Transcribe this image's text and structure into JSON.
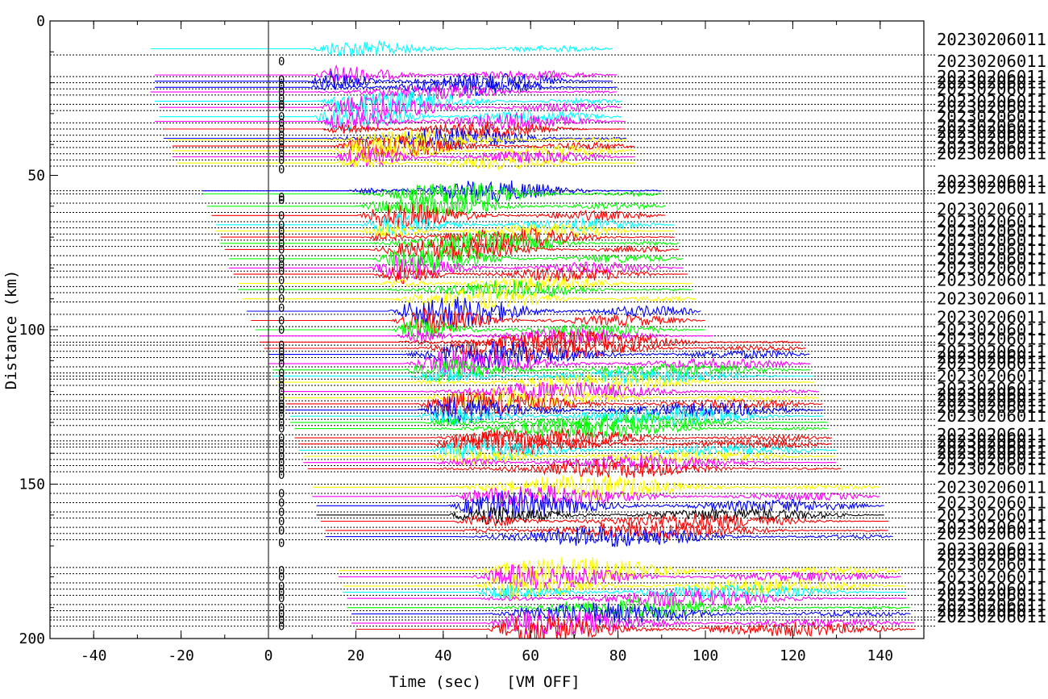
{
  "chart_data": {
    "type": "line",
    "xlabel": "Time (sec)",
    "xlabel_suffix": "[VM OFF]",
    "ylabel": "Distance (km)",
    "xlim": [
      -50,
      150
    ],
    "ylim": [
      0,
      200
    ],
    "y_inverted": true,
    "x_ticks": [
      -40,
      -20,
      0,
      20,
      40,
      60,
      80,
      100,
      120,
      140
    ],
    "y_ticks": [
      0,
      50,
      100,
      150,
      200
    ],
    "origin_line_x": 0,
    "pick_marker_x": 3,
    "pick_marker_label": "0",
    "station_label": "20230206011",
    "colors": [
      "#00ffff",
      "#0000ff",
      "#ff00ff",
      "#ff0000",
      "#ffff00",
      "#00ff00",
      "#000000"
    ],
    "traces": [
      {
        "distance": 9,
        "start": -27,
        "end": 79,
        "color": "#00ffff",
        "amp": 0.35,
        "onset": 9
      },
      {
        "distance": 17.5,
        "start": -26,
        "end": 80,
        "color": "#ff00ff",
        "amp": 0.4,
        "onset": 10
      },
      {
        "distance": 19.5,
        "start": -26,
        "end": 79,
        "color": "#0000ff",
        "amp": 0.6,
        "onset": 9
      },
      {
        "distance": 21.5,
        "start": -26,
        "end": 80,
        "color": "#0000ff",
        "amp": 0.5,
        "onset": 9
      },
      {
        "distance": 23,
        "start": -27,
        "end": 80,
        "color": "#ff00ff",
        "amp": 0.4,
        "onset": 10
      },
      {
        "distance": 26,
        "start": -26,
        "end": 81,
        "color": "#00ffff",
        "amp": 0.5,
        "onset": 9
      },
      {
        "distance": 28,
        "start": -25,
        "end": 81,
        "color": "#ff00ff",
        "amp": 0.5,
        "onset": 11
      },
      {
        "distance": 31,
        "start": -25,
        "end": 81,
        "color": "#00ffff",
        "amp": 0.6,
        "onset": 10
      },
      {
        "distance": 32.5,
        "start": -26,
        "end": 82,
        "color": "#ff00ff",
        "amp": 0.6,
        "onset": 12
      },
      {
        "distance": 35,
        "start": -24,
        "end": 82,
        "color": "#ff0000",
        "amp": 0.5,
        "onset": 12
      },
      {
        "distance": 38,
        "start": -24,
        "end": 82,
        "color": "#0000ff",
        "amp": 0.6,
        "onset": 13
      },
      {
        "distance": 38.5,
        "start": -23,
        "end": 82,
        "color": "#ffff00",
        "amp": 0.5,
        "onset": 13
      },
      {
        "distance": 40.5,
        "start": -22,
        "end": 84,
        "color": "#ff0000",
        "amp": 0.5,
        "onset": 14
      },
      {
        "distance": 42,
        "start": -22,
        "end": 84,
        "color": "#ffff00",
        "amp": 0.5,
        "onset": 14
      },
      {
        "distance": 44,
        "start": -22,
        "end": 84,
        "color": "#ff00ff",
        "amp": 0.5,
        "onset": 15
      },
      {
        "distance": 46,
        "start": -21,
        "end": 84,
        "color": "#ffff00",
        "amp": 0.4,
        "onset": 15
      },
      {
        "distance": 55,
        "start": -15,
        "end": 90,
        "color": "#0000ff",
        "amp": 0.6,
        "onset": 18
      },
      {
        "distance": 56,
        "start": -15,
        "end": 90,
        "color": "#00ff00",
        "amp": 0.6,
        "onset": 18
      },
      {
        "distance": 60,
        "start": -14,
        "end": 91,
        "color": "#00ff00",
        "amp": 0.5,
        "onset": 19
      },
      {
        "distance": 63,
        "start": -13,
        "end": 91,
        "color": "#ff0000",
        "amp": 0.5,
        "onset": 20
      },
      {
        "distance": 66,
        "start": -12,
        "end": 93,
        "color": "#00ffff",
        "amp": 0.5,
        "onset": 21
      },
      {
        "distance": 68,
        "start": -12,
        "end": 93,
        "color": "#ffff00",
        "amp": 0.5,
        "onset": 21
      },
      {
        "distance": 70,
        "start": -11,
        "end": 93,
        "color": "#ff0000",
        "amp": 0.6,
        "onset": 21
      },
      {
        "distance": 72,
        "start": -11,
        "end": 94,
        "color": "#00ff00",
        "amp": 0.6,
        "onset": 22
      },
      {
        "distance": 74,
        "start": -10,
        "end": 94,
        "color": "#ff0000",
        "amp": 0.5,
        "onset": 22
      },
      {
        "distance": 77,
        "start": -9,
        "end": 95,
        "color": "#00ff00",
        "amp": 0.5,
        "onset": 23
      },
      {
        "distance": 80,
        "start": -9,
        "end": 95,
        "color": "#ff00ff",
        "amp": 0.5,
        "onset": 23
      },
      {
        "distance": 82,
        "start": -8,
        "end": 96,
        "color": "#ff0000",
        "amp": 0.5,
        "onset": 24
      },
      {
        "distance": 85,
        "start": -7,
        "end": 97,
        "color": "#ffff00",
        "amp": 0.5,
        "onset": 25
      },
      {
        "distance": 87,
        "start": -7,
        "end": 97,
        "color": "#00ff00",
        "amp": 0.5,
        "onset": 25
      },
      {
        "distance": 90,
        "start": -6,
        "end": 98,
        "color": "#ffff00",
        "amp": 0.5,
        "onset": 26
      },
      {
        "distance": 94,
        "start": -5,
        "end": 99,
        "color": "#0000ff",
        "amp": 0.7,
        "onset": 27
      },
      {
        "distance": 97,
        "start": -4,
        "end": 100,
        "color": "#ff0000",
        "amp": 0.5,
        "onset": 28
      },
      {
        "distance": 100,
        "start": -3,
        "end": 100,
        "color": "#00ff00",
        "amp": 0.5,
        "onset": 28
      },
      {
        "distance": 102,
        "start": -2,
        "end": 102,
        "color": "#ff00ff",
        "amp": 0.5,
        "onset": 29
      },
      {
        "distance": 104,
        "start": -2,
        "end": 122,
        "color": "#ff0000",
        "amp": 0.6,
        "onset": 29
      },
      {
        "distance": 106,
        "start": -1,
        "end": 123,
        "color": "#ff0000",
        "amp": 0.6,
        "onset": 30
      },
      {
        "distance": 108,
        "start": 0,
        "end": 124,
        "color": "#0000ff",
        "amp": 0.6,
        "onset": 30
      },
      {
        "distance": 111,
        "start": 0,
        "end": 124,
        "color": "#ff00ff",
        "amp": 0.5,
        "onset": 31
      },
      {
        "distance": 113,
        "start": 1,
        "end": 124,
        "color": "#00ff00",
        "amp": 0.5,
        "onset": 31
      },
      {
        "distance": 115,
        "start": 1,
        "end": 125,
        "color": "#00ffff",
        "amp": 0.5,
        "onset": 32
      },
      {
        "distance": 117,
        "start": 2,
        "end": 125,
        "color": "#ffff00",
        "amp": 0.5,
        "onset": 32
      },
      {
        "distance": 120,
        "start": 3,
        "end": 126,
        "color": "#ff00ff",
        "amp": 0.5,
        "onset": 33
      },
      {
        "distance": 122,
        "start": 3,
        "end": 126,
        "color": "#ffff00",
        "amp": 0.5,
        "onset": 33
      },
      {
        "distance": 124,
        "start": 4,
        "end": 127,
        "color": "#ff0000",
        "amp": 0.5,
        "onset": 33
      },
      {
        "distance": 126,
        "start": 4,
        "end": 127,
        "color": "#0000ff",
        "amp": 0.6,
        "onset": 34
      },
      {
        "distance": 128,
        "start": 5,
        "end": 127,
        "color": "#00ffff",
        "amp": 0.6,
        "onset": 34
      },
      {
        "distance": 130,
        "start": 5,
        "end": 128,
        "color": "#00ff00",
        "amp": 0.5,
        "onset": 35
      },
      {
        "distance": 132,
        "start": 6,
        "end": 128,
        "color": "#00ff00",
        "amp": 0.5,
        "onset": 35
      },
      {
        "distance": 135,
        "start": 6,
        "end": 129,
        "color": "#ff0000",
        "amp": 0.5,
        "onset": 36
      },
      {
        "distance": 137,
        "start": 7,
        "end": 129,
        "color": "#ff0000",
        "amp": 0.5,
        "onset": 36
      },
      {
        "distance": 139,
        "start": 7,
        "end": 130,
        "color": "#00ffff",
        "amp": 0.5,
        "onset": 37
      },
      {
        "distance": 141,
        "start": 8,
        "end": 130,
        "color": "#ffff00",
        "amp": 0.5,
        "onset": 37
      },
      {
        "distance": 143,
        "start": 8,
        "end": 130,
        "color": "#ff00ff",
        "amp": 0.5,
        "onset": 38
      },
      {
        "distance": 145,
        "start": 9,
        "end": 131,
        "color": "#ff0000",
        "amp": 0.5,
        "onset": 38
      },
      {
        "distance": 151,
        "start": 10,
        "end": 140,
        "color": "#ffff00",
        "amp": 0.6,
        "onset": 40
      },
      {
        "distance": 154,
        "start": 10,
        "end": 140,
        "color": "#ff00ff",
        "amp": 0.5,
        "onset": 40
      },
      {
        "distance": 157,
        "start": 11,
        "end": 141,
        "color": "#0000ff",
        "amp": 0.6,
        "onset": 41
      },
      {
        "distance": 160,
        "start": 11,
        "end": 141,
        "color": "#000000",
        "amp": 0.5,
        "onset": 41
      },
      {
        "distance": 162,
        "start": 12,
        "end": 142,
        "color": "#ff0000",
        "amp": 0.5,
        "onset": 42
      },
      {
        "distance": 165,
        "start": 13,
        "end": 142,
        "color": "#ff0000",
        "amp": 0.5,
        "onset": 43
      },
      {
        "distance": 167,
        "start": 13,
        "end": 143,
        "color": "#0000ff",
        "amp": 0.5,
        "onset": 43
      },
      {
        "distance": 178,
        "start": 16,
        "end": 145,
        "color": "#ffff00",
        "amp": 0.6,
        "onset": 46
      },
      {
        "distance": 180,
        "start": 16,
        "end": 145,
        "color": "#ff00ff",
        "amp": 0.5,
        "onset": 46
      },
      {
        "distance": 183,
        "start": 17,
        "end": 146,
        "color": "#ffff00",
        "amp": 0.6,
        "onset": 47
      },
      {
        "distance": 185,
        "start": 17,
        "end": 146,
        "color": "#00ffff",
        "amp": 0.5,
        "onset": 47
      },
      {
        "distance": 187,
        "start": 18,
        "end": 146,
        "color": "#ff00ff",
        "amp": 0.5,
        "onset": 48
      },
      {
        "distance": 190,
        "start": 18,
        "end": 147,
        "color": "#00ff00",
        "amp": 0.5,
        "onset": 48
      },
      {
        "distance": 192,
        "start": 19,
        "end": 147,
        "color": "#0000ff",
        "amp": 0.5,
        "onset": 49
      },
      {
        "distance": 195,
        "start": 19,
        "end": 148,
        "color": "#ff00ff",
        "amp": 0.5,
        "onset": 49
      },
      {
        "distance": 197,
        "start": 20,
        "end": 148,
        "color": "#ff0000",
        "amp": 0.6,
        "onset": 50
      }
    ],
    "dotted_ref_distances": [
      11,
      18,
      20,
      22,
      24,
      27,
      29,
      33,
      35,
      37,
      39,
      41,
      43,
      45,
      47,
      55,
      56,
      59,
      62,
      65,
      67,
      69,
      71,
      73,
      76,
      79,
      81,
      83,
      86,
      88,
      91,
      95,
      99,
      102,
      104,
      105,
      107,
      109,
      112,
      114,
      115,
      116,
      118,
      121,
      123,
      125,
      126,
      127,
      129,
      131,
      134,
      136,
      137,
      138,
      140,
      142,
      144,
      146,
      150,
      153,
      156,
      159,
      161,
      164,
      166,
      168,
      177,
      179,
      182,
      184,
      186,
      189,
      191,
      193,
      194,
      196
    ],
    "label_distances": [
      6,
      13,
      18,
      20,
      22,
      26,
      28,
      31,
      34,
      36,
      38,
      41,
      43,
      52,
      54,
      61,
      65,
      68,
      71,
      74,
      77,
      80,
      84,
      90,
      96,
      100,
      103,
      107,
      109,
      111,
      115,
      119,
      121,
      123,
      125,
      128,
      134,
      136,
      138,
      140,
      142,
      145,
      151,
      156,
      160,
      164,
      166,
      171,
      173,
      176,
      180,
      184,
      186,
      189,
      191,
      193
    ],
    "marker_distances": [
      13,
      19,
      21,
      23,
      25,
      27,
      28,
      31,
      33,
      35,
      37,
      39,
      41,
      43,
      45,
      48,
      57,
      58,
      63,
      66,
      68,
      70,
      72,
      74,
      77,
      79,
      81,
      84,
      87,
      90,
      93,
      97,
      100,
      105,
      107,
      109,
      111,
      114,
      116,
      118,
      120,
      122,
      124,
      125,
      126,
      128,
      130,
      132,
      135,
      137,
      139,
      141,
      143,
      145,
      147,
      153,
      156,
      159,
      162,
      165,
      169,
      178,
      180,
      183,
      185,
      187,
      190,
      192,
      194,
      196
    ]
  }
}
